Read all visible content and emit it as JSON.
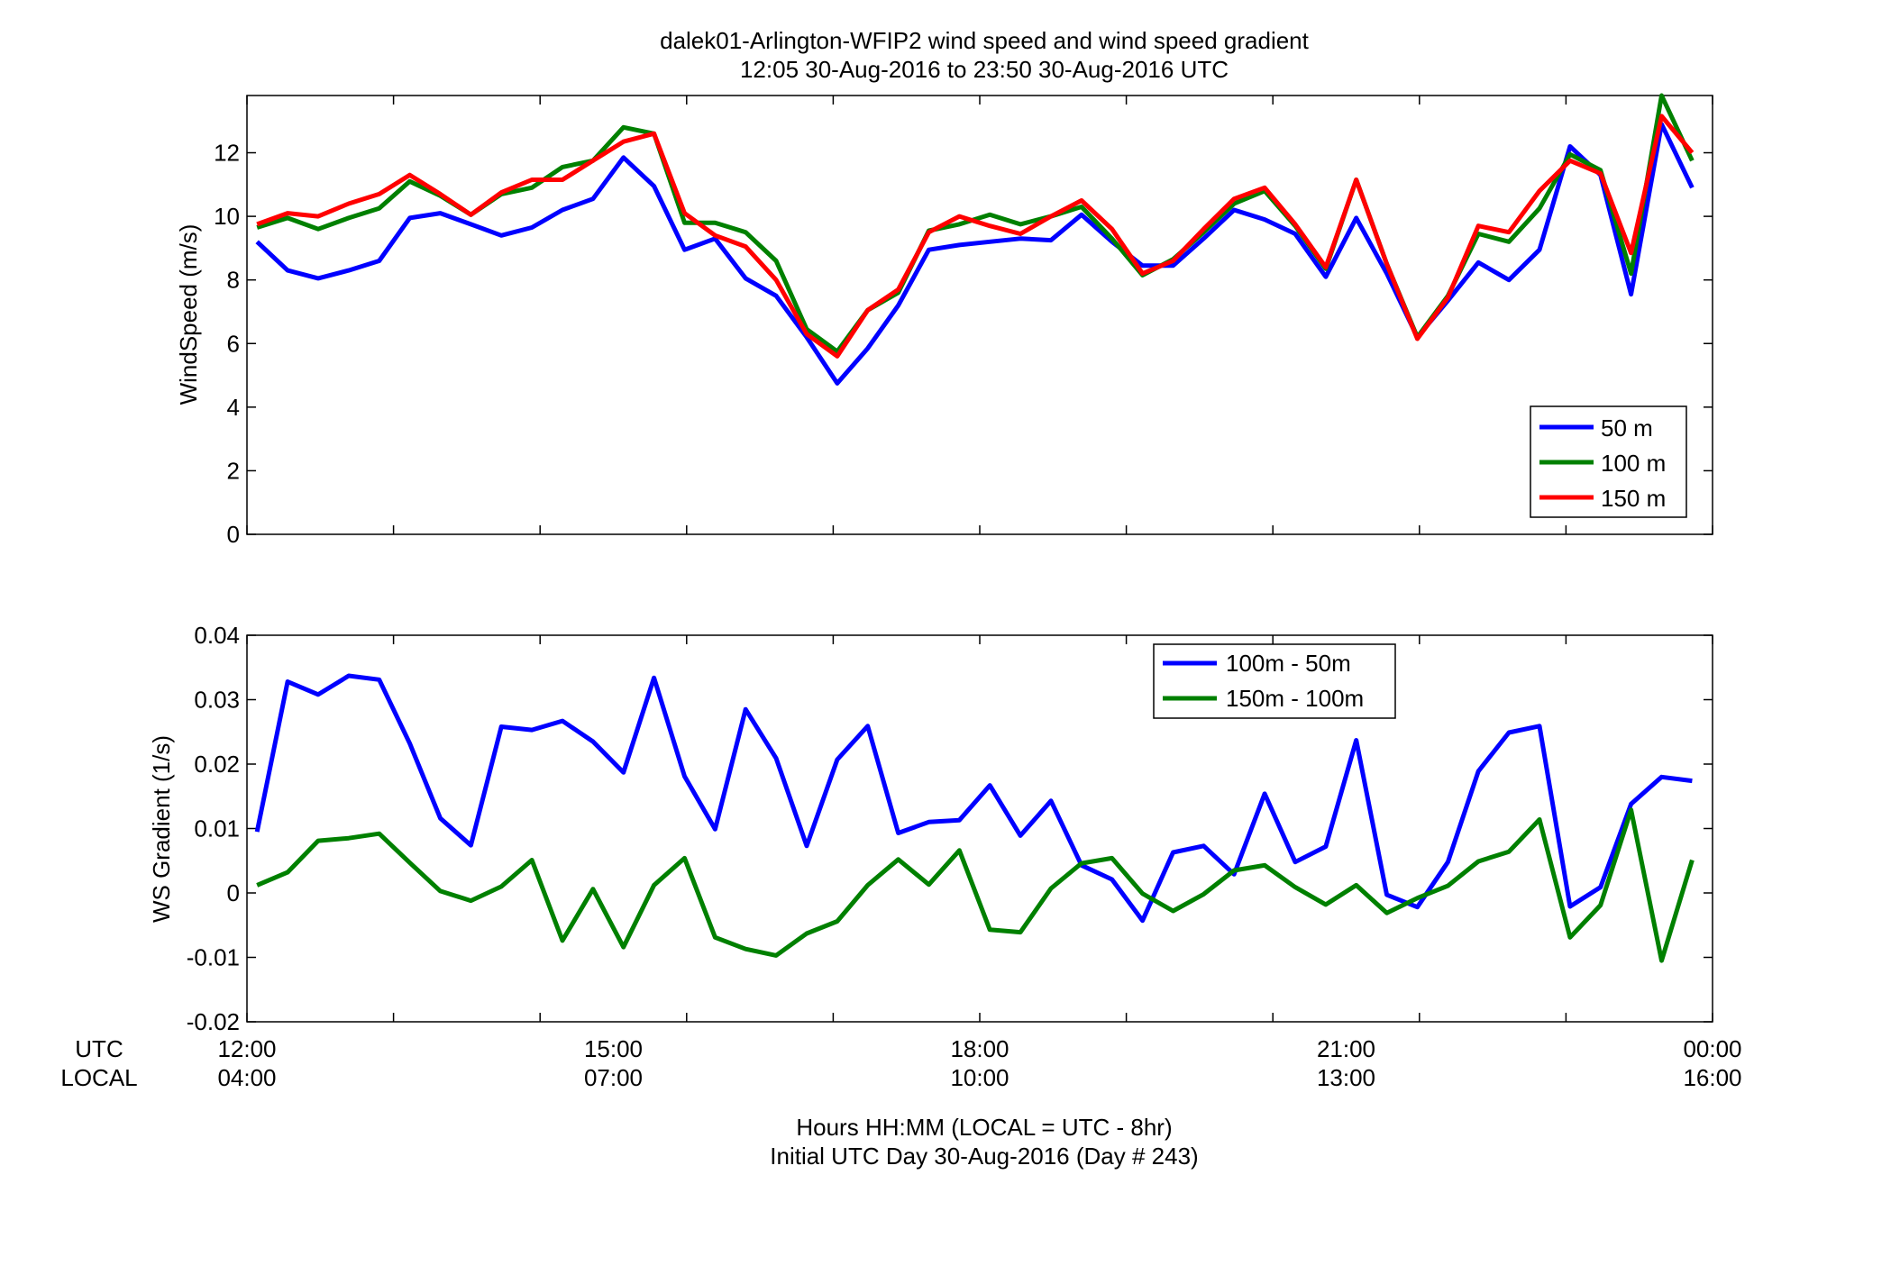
{
  "figure": {
    "title_line1": "dalek01-Arlington-WFIP2  wind speed and wind speed gradient",
    "title_line2": "12:05 30-Aug-2016 to 23:50 30-Aug-2016  UTC",
    "xlabel_line1": "Hours HH:MM  (LOCAL = UTC - 8hr)",
    "xlabel_line2": "Initial UTC Day 30-Aug-2016 (Day # 243)",
    "row_label_utc": "UTC",
    "row_label_local": "LOCAL",
    "utc_ticks": [
      "12:00",
      "15:00",
      "18:00",
      "21:00",
      "00:00"
    ],
    "local_ticks": [
      "04:00",
      "07:00",
      "10:00",
      "13:00",
      "16:00"
    ]
  },
  "chart_data": [
    {
      "type": "line",
      "ylabel": "WindSpeed (m/s)",
      "xlim": [
        12.0,
        24.0
      ],
      "ylim": [
        0,
        13.8
      ],
      "yticks": [
        0,
        2,
        4,
        6,
        8,
        10,
        12
      ],
      "ytick_labels": [
        "0",
        "2",
        "4",
        "6",
        "8",
        "10",
        "12"
      ],
      "xticks": [
        12,
        13.2,
        14.4,
        15.6,
        16.8,
        18,
        19.2,
        20.4,
        21.6,
        22.8,
        24
      ],
      "grid": false,
      "legend_position": "bottom-right",
      "x": [
        12.083,
        12.333,
        12.583,
        12.833,
        13.083,
        13.333,
        13.583,
        13.833,
        14.083,
        14.333,
        14.583,
        14.833,
        15.083,
        15.333,
        15.583,
        15.833,
        16.083,
        16.333,
        16.583,
        16.833,
        17.083,
        17.333,
        17.583,
        17.833,
        18.083,
        18.333,
        18.583,
        18.833,
        19.083,
        19.333,
        19.583,
        19.833,
        20.083,
        20.333,
        20.583,
        20.833,
        21.083,
        21.333,
        21.583,
        21.833,
        22.083,
        22.333,
        22.583,
        22.833,
        23.083,
        23.333,
        23.583,
        23.833
      ],
      "series": [
        {
          "name": "50 m",
          "color": "#0000ff",
          "values": [
            9.2,
            8.3,
            8.05,
            8.3,
            8.6,
            9.95,
            10.1,
            9.75,
            9.4,
            9.65,
            10.2,
            10.55,
            11.85,
            10.95,
            8.95,
            9.3,
            8.05,
            7.5,
            6.2,
            4.75,
            5.85,
            7.2,
            8.95,
            9.1,
            9.2,
            9.3,
            9.25,
            10.05,
            9.2,
            8.45,
            8.45,
            9.3,
            10.2,
            9.9,
            9.45,
            8.1,
            9.95,
            8.2,
            6.2,
            7.35,
            8.55,
            8.0,
            8.95,
            12.2,
            11.3,
            7.55,
            12.9,
            10.9
          ]
        },
        {
          "name": "100 m",
          "color": "#008000",
          "values": [
            9.65,
            9.95,
            9.6,
            9.95,
            10.25,
            11.1,
            10.65,
            10.05,
            10.7,
            10.9,
            11.55,
            11.75,
            12.8,
            12.6,
            9.8,
            9.8,
            9.5,
            8.6,
            6.45,
            5.75,
            7.05,
            7.6,
            9.55,
            9.75,
            10.05,
            9.75,
            10.0,
            10.3,
            9.3,
            8.15,
            8.65,
            9.5,
            10.4,
            10.8,
            9.7,
            8.35,
            11.15,
            8.5,
            6.2,
            7.5,
            9.45,
            9.2,
            10.25,
            11.95,
            11.45,
            8.2,
            13.8,
            11.75
          ]
        },
        {
          "name": "150 m",
          "color": "#ff0000",
          "values": [
            9.75,
            10.1,
            10.0,
            10.4,
            10.7,
            11.3,
            10.7,
            10.05,
            10.75,
            11.15,
            11.15,
            11.75,
            12.35,
            12.6,
            10.1,
            9.4,
            9.05,
            8.0,
            6.3,
            5.6,
            7.05,
            7.7,
            9.5,
            10.0,
            9.7,
            9.45,
            10.0,
            10.5,
            9.6,
            8.2,
            8.6,
            9.6,
            10.55,
            10.9,
            9.75,
            8.4,
            11.15,
            8.5,
            6.15,
            7.45,
            9.7,
            9.5,
            10.8,
            11.75,
            11.35,
            8.85,
            13.15,
            12.0
          ]
        }
      ]
    },
    {
      "type": "line",
      "ylabel": "WS Gradient (1/s)",
      "xlim": [
        12.0,
        24.0
      ],
      "ylim": [
        -0.02,
        0.04
      ],
      "yticks": [
        -0.02,
        -0.01,
        0,
        0.01,
        0.02,
        0.03,
        0.04
      ],
      "ytick_labels": [
        "-0.02",
        "-0.01",
        "0",
        "0.01",
        "0.02",
        "0.03",
        "0.04"
      ],
      "xticks": [
        12,
        13.2,
        14.4,
        15.6,
        16.8,
        18,
        19.2,
        20.4,
        21.6,
        22.8,
        24
      ],
      "grid": false,
      "legend_position": "top-center-right",
      "x": [
        12.083,
        12.333,
        12.583,
        12.833,
        13.083,
        13.333,
        13.583,
        13.833,
        14.083,
        14.333,
        14.583,
        14.833,
        15.083,
        15.333,
        15.583,
        15.833,
        16.083,
        16.333,
        16.583,
        16.833,
        17.083,
        17.333,
        17.583,
        17.833,
        18.083,
        18.333,
        18.583,
        18.833,
        19.083,
        19.333,
        19.583,
        19.833,
        20.083,
        20.333,
        20.583,
        20.833,
        21.083,
        21.333,
        21.583,
        21.833,
        22.083,
        22.333,
        22.583,
        22.833,
        23.083,
        23.333,
        23.583,
        23.833
      ],
      "series": [
        {
          "name": "100m - 50m",
          "color": "#0000ff",
          "values": [
            0.0095,
            0.0328,
            0.0308,
            0.0337,
            0.0331,
            0.0232,
            0.0116,
            0.0074,
            0.0258,
            0.0253,
            0.0267,
            0.0235,
            0.0187,
            0.0334,
            0.0181,
            0.0099,
            0.0285,
            0.0209,
            0.0073,
            0.0207,
            0.0259,
            0.0093,
            0.011,
            0.0113,
            0.0167,
            0.0089,
            0.0143,
            0.0043,
            0.0021,
            -0.0043,
            0.0063,
            0.0073,
            0.0029,
            0.0154,
            0.0048,
            0.0072,
            0.0237,
            -0.0003,
            -0.0022,
            0.0048,
            0.0189,
            0.0249,
            0.0259,
            -0.0021,
            0.0009,
            0.0138,
            0.018,
            0.0174
          ]
        },
        {
          "name": "150m - 100m",
          "color": "#008000",
          "values": [
            0.0012,
            0.0032,
            0.0081,
            0.0085,
            0.0092,
            0.0047,
            0.0003,
            -0.0012,
            0.001,
            0.0051,
            -0.0074,
            0.0006,
            -0.0084,
            0.0012,
            0.0054,
            -0.0069,
            -0.0087,
            -0.0097,
            -0.0063,
            -0.0044,
            0.0012,
            0.0052,
            0.0013,
            0.0066,
            -0.0057,
            -0.0061,
            0.0007,
            0.0046,
            0.0054,
            -0.0001,
            -0.0028,
            -0.0002,
            0.0035,
            0.0043,
            0.0009,
            -0.0018,
            0.0012,
            -0.0031,
            -0.0008,
            0.0011,
            0.0049,
            0.0064,
            0.0114,
            -0.0069,
            -0.0019,
            0.0129,
            -0.0105,
            0.0051
          ]
        }
      ]
    }
  ]
}
